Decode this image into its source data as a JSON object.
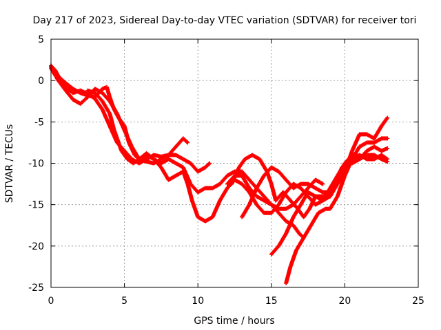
{
  "chart_data": {
    "type": "scatter",
    "title": "Day 217 of 2023, Sidereal Day-to-day VTEC variation (SDTVAR) for receiver tori",
    "xlabel": "GPS time / hours",
    "ylabel": "SDTVAR / TECUs",
    "xlim": [
      0,
      25
    ],
    "ylim": [
      -25,
      5
    ],
    "xticks": [
      0,
      5,
      10,
      15,
      20,
      25
    ],
    "yticks": [
      -25,
      -20,
      -15,
      -10,
      -5,
      0,
      5
    ],
    "grid": true,
    "marker_color": "#ff0000",
    "series": [
      {
        "points": [
          [
            0.0,
            1.8
          ],
          [
            0.3,
            1.2
          ],
          [
            0.6,
            0.2
          ],
          [
            1.0,
            -0.8
          ],
          [
            1.5,
            -1.5
          ],
          [
            2.0,
            -1.2
          ],
          [
            2.5,
            -1.6
          ],
          [
            3.0,
            -2.2
          ],
          [
            3.5,
            -3.5
          ],
          [
            4.0,
            -5.5
          ],
          [
            4.5,
            -7.5
          ],
          [
            5.0,
            -8.5
          ],
          [
            5.5,
            -9.5
          ],
          [
            6.0,
            -10.0
          ],
          [
            6.5,
            -9.5
          ],
          [
            7.0,
            -9.0
          ],
          [
            7.5,
            -9.2
          ],
          [
            8.0,
            -9.0
          ],
          [
            8.5,
            -8.0
          ],
          [
            9.0,
            -7.0
          ],
          [
            9.3,
            -7.5
          ]
        ]
      },
      {
        "points": [
          [
            0.0,
            1.5
          ],
          [
            0.5,
            0.0
          ],
          [
            1.0,
            -1.2
          ],
          [
            1.5,
            -2.3
          ],
          [
            2.0,
            -2.8
          ],
          [
            2.5,
            -2.0
          ],
          [
            3.0,
            -1.0
          ],
          [
            3.5,
            -1.5
          ],
          [
            4.0,
            -2.5
          ],
          [
            4.5,
            -4.0
          ],
          [
            5.0,
            -6.0
          ],
          [
            5.5,
            -8.0
          ],
          [
            6.0,
            -9.5
          ],
          [
            6.5,
            -9.8
          ],
          [
            7.0,
            -10.0
          ],
          [
            7.5,
            -9.5
          ],
          [
            8.0,
            -9.0
          ],
          [
            8.5,
            -9.0
          ],
          [
            9.0,
            -9.5
          ],
          [
            9.5,
            -10.0
          ],
          [
            10.0,
            -11.0
          ],
          [
            10.5,
            -10.5
          ],
          [
            10.8,
            -10.0
          ]
        ]
      },
      {
        "points": [
          [
            0.0,
            1.7
          ],
          [
            0.5,
            0.5
          ],
          [
            1.0,
            -0.3
          ],
          [
            1.5,
            -1.0
          ],
          [
            2.0,
            -1.5
          ],
          [
            2.5,
            -1.8
          ],
          [
            3.0,
            -2.0
          ],
          [
            3.5,
            -1.0
          ],
          [
            3.8,
            -0.8
          ],
          [
            4.0,
            -2.0
          ],
          [
            4.3,
            -3.5
          ],
          [
            4.6,
            -4.5
          ],
          [
            5.0,
            -5.5
          ],
          [
            5.3,
            -7.5
          ],
          [
            5.7,
            -9.0
          ],
          [
            6.0,
            -9.5
          ],
          [
            6.5,
            -9.0
          ],
          [
            7.0,
            -9.5
          ],
          [
            7.5,
            -10.5
          ],
          [
            8.0,
            -12.0
          ],
          [
            8.5,
            -11.5
          ],
          [
            9.0,
            -11.0
          ],
          [
            9.3,
            -12.5
          ],
          [
            9.6,
            -14.5
          ],
          [
            10.0,
            -16.5
          ],
          [
            10.5,
            -17.0
          ],
          [
            11.0,
            -16.5
          ],
          [
            11.5,
            -14.5
          ],
          [
            12.0,
            -13.0
          ],
          [
            12.5,
            -12.0
          ],
          [
            13.0,
            -12.5
          ],
          [
            13.5,
            -13.5
          ],
          [
            14.0,
            -15.0
          ],
          [
            14.5,
            -16.0
          ],
          [
            15.0,
            -16.0
          ],
          [
            15.5,
            -15.0
          ],
          [
            16.0,
            -13.5
          ],
          [
            16.5,
            -12.5
          ],
          [
            17.0,
            -13.0
          ],
          [
            17.5,
            -14.0
          ],
          [
            18.0,
            -15.0
          ],
          [
            18.5,
            -14.5
          ],
          [
            19.0,
            -13.0
          ],
          [
            19.5,
            -11.5
          ],
          [
            20.0,
            -10.0
          ],
          [
            20.5,
            -9.0
          ],
          [
            21.0,
            -9.5
          ],
          [
            21.5,
            -8.5
          ],
          [
            22.0,
            -8.0
          ],
          [
            22.5,
            -8.5
          ],
          [
            22.9,
            -8.2
          ]
        ]
      },
      {
        "points": [
          [
            2.5,
            -1.2
          ],
          [
            3.0,
            -1.5
          ],
          [
            3.5,
            -2.5
          ],
          [
            4.0,
            -4.0
          ],
          [
            4.3,
            -6.0
          ],
          [
            4.8,
            -8.5
          ],
          [
            5.2,
            -9.5
          ],
          [
            5.6,
            -10.0
          ],
          [
            6.0,
            -9.5
          ],
          [
            6.5,
            -8.8
          ],
          [
            7.0,
            -9.5
          ],
          [
            7.5,
            -10.0
          ],
          [
            8.0,
            -9.5
          ],
          [
            8.5,
            -10.0
          ],
          [
            9.0,
            -10.5
          ],
          [
            9.5,
            -12.5
          ],
          [
            10.0,
            -13.5
          ],
          [
            10.5,
            -13.0
          ],
          [
            11.0,
            -13.0
          ],
          [
            11.5,
            -12.5
          ],
          [
            12.0,
            -11.5
          ],
          [
            12.5,
            -11.0
          ],
          [
            13.0,
            -11.0
          ],
          [
            13.5,
            -12.0
          ],
          [
            14.0,
            -13.0
          ],
          [
            14.5,
            -14.0
          ],
          [
            15.0,
            -15.0
          ],
          [
            15.5,
            -15.5
          ],
          [
            16.0,
            -15.5
          ],
          [
            16.5,
            -15.0
          ],
          [
            17.0,
            -14.0
          ],
          [
            17.5,
            -13.0
          ],
          [
            18.0,
            -12.0
          ],
          [
            18.5,
            -12.5
          ]
        ]
      },
      {
        "points": [
          [
            12.0,
            -12.5
          ],
          [
            12.5,
            -11.5
          ],
          [
            13.0,
            -11.5
          ],
          [
            13.5,
            -13.0
          ],
          [
            14.0,
            -14.0
          ],
          [
            14.5,
            -14.5
          ],
          [
            15.0,
            -15.0
          ],
          [
            15.5,
            -16.0
          ],
          [
            16.0,
            -17.0
          ],
          [
            16.5,
            -17.5
          ],
          [
            16.9,
            -18.5
          ],
          [
            17.2,
            -19.0
          ]
        ]
      },
      {
        "points": [
          [
            13.0,
            -16.5
          ],
          [
            13.5,
            -15.0
          ],
          [
            14.0,
            -13.0
          ],
          [
            14.5,
            -11.5
          ],
          [
            15.0,
            -10.5
          ],
          [
            15.5,
            -11.0
          ],
          [
            16.0,
            -12.0
          ],
          [
            16.5,
            -13.0
          ],
          [
            17.0,
            -12.5
          ],
          [
            17.5,
            -12.5
          ],
          [
            18.0,
            -13.0
          ],
          [
            18.5,
            -13.5
          ],
          [
            19.0,
            -13.5
          ],
          [
            19.5,
            -12.0
          ],
          [
            20.0,
            -10.5
          ],
          [
            20.5,
            -9.5
          ],
          [
            21.0,
            -9.0
          ],
          [
            21.5,
            -9.5
          ],
          [
            22.0,
            -9.5
          ],
          [
            22.5,
            -9.0
          ],
          [
            22.9,
            -9.5
          ]
        ]
      },
      {
        "points": [
          [
            12.3,
            -12.5
          ],
          [
            12.8,
            -10.5
          ],
          [
            13.2,
            -9.5
          ],
          [
            13.7,
            -9.0
          ],
          [
            14.2,
            -9.5
          ],
          [
            14.7,
            -11.0
          ],
          [
            15.0,
            -12.5
          ],
          [
            15.3,
            -14.5
          ],
          [
            15.8,
            -13.5
          ],
          [
            16.3,
            -14.5
          ],
          [
            16.8,
            -15.5
          ],
          [
            17.2,
            -16.5
          ],
          [
            17.6,
            -15.5
          ],
          [
            18.0,
            -14.0
          ],
          [
            18.5,
            -14.0
          ],
          [
            19.0,
            -14.0
          ],
          [
            19.5,
            -12.5
          ],
          [
            20.0,
            -11.0
          ],
          [
            20.5,
            -8.5
          ],
          [
            21.0,
            -6.5
          ],
          [
            21.5,
            -6.5
          ],
          [
            22.0,
            -7.0
          ],
          [
            22.5,
            -5.5
          ],
          [
            22.9,
            -4.5
          ]
        ]
      },
      {
        "points": [
          [
            15.0,
            -21.0
          ],
          [
            15.5,
            -20.0
          ],
          [
            16.0,
            -18.5
          ],
          [
            16.5,
            -16.5
          ],
          [
            17.0,
            -15.0
          ],
          [
            17.5,
            -13.5
          ],
          [
            18.0,
            -14.0
          ],
          [
            18.5,
            -14.5
          ],
          [
            19.0,
            -14.0
          ],
          [
            19.5,
            -12.0
          ],
          [
            19.8,
            -10.5
          ]
        ]
      },
      {
        "points": [
          [
            16.0,
            -24.5
          ],
          [
            16.3,
            -22.5
          ],
          [
            16.7,
            -20.5
          ],
          [
            17.2,
            -19.0
          ],
          [
            17.7,
            -17.5
          ],
          [
            18.2,
            -16.0
          ],
          [
            18.7,
            -15.5
          ],
          [
            19.0,
            -15.5
          ],
          [
            19.5,
            -14.0
          ],
          [
            20.0,
            -11.5
          ],
          [
            20.5,
            -9.5
          ],
          [
            21.0,
            -8.0
          ],
          [
            21.5,
            -7.5
          ],
          [
            22.0,
            -7.5
          ],
          [
            22.5,
            -7.0
          ],
          [
            22.9,
            -7.0
          ]
        ]
      },
      {
        "points": [
          [
            20.5,
            -10.0
          ],
          [
            21.0,
            -9.5
          ],
          [
            21.5,
            -9.0
          ],
          [
            22.0,
            -9.0
          ],
          [
            22.5,
            -9.5
          ],
          [
            22.9,
            -9.8
          ]
        ]
      }
    ]
  }
}
